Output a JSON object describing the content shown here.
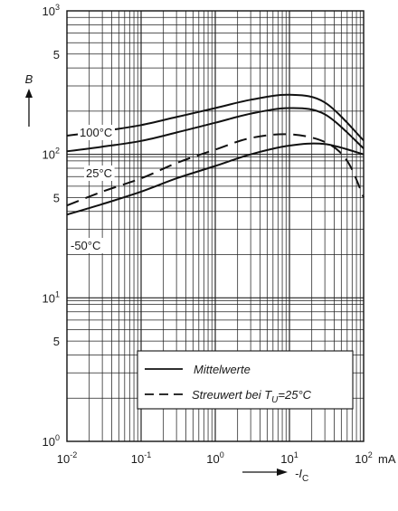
{
  "chart_data": {
    "type": "line",
    "title": "",
    "x_scale": "log",
    "y_scale": "log",
    "xlim": [
      0.01,
      100
    ],
    "ylim": [
      1,
      1000
    ],
    "grid": true,
    "x_unit": "mA",
    "x_axis_symbol": "-I_C",
    "y_axis_symbol": "B",
    "x_tick_labels": [
      "10^-2",
      "10^-1",
      "10^0",
      "10^1",
      "10^2"
    ],
    "y_tick_labels": [
      "10^0",
      "5",
      "10^1",
      "5",
      "10^2",
      "5",
      "10^3"
    ],
    "series": [
      {
        "name": "100°C",
        "style": "solid",
        "x": [
          0.01,
          0.03,
          0.1,
          0.3,
          1,
          3,
          10,
          30,
          100
        ],
        "y": [
          135,
          145,
          160,
          182,
          210,
          240,
          260,
          230,
          125
        ]
      },
      {
        "name": "25°C",
        "style": "solid",
        "x": [
          0.01,
          0.03,
          0.1,
          0.3,
          1,
          3,
          10,
          30,
          100
        ],
        "y": [
          105,
          113,
          124,
          142,
          166,
          192,
          210,
          190,
          110
        ]
      },
      {
        "name": "-50°C",
        "style": "solid",
        "x": [
          0.01,
          0.03,
          0.1,
          0.3,
          1,
          3,
          10,
          30,
          100
        ],
        "y": [
          38,
          45,
          55,
          68,
          83,
          100,
          115,
          118,
          100
        ]
      },
      {
        "name": "Streuwert bei T_U=25°C",
        "style": "dashed",
        "x": [
          0.01,
          0.03,
          0.1,
          0.3,
          1,
          3,
          10,
          30,
          60,
          100
        ],
        "y": [
          44,
          55,
          68,
          87,
          108,
          130,
          138,
          122,
          90,
          50
        ]
      }
    ],
    "curve_labels": [
      "100°C",
      "25°C",
      "-50°C"
    ],
    "legend": {
      "position": "bottom-right",
      "entries": [
        {
          "style": "solid",
          "text": "Mittelwerte"
        },
        {
          "style": "dashed",
          "text_main": "Streuwert  bei T",
          "text_sub": "U",
          "text_tail": "=25°C"
        }
      ]
    }
  }
}
